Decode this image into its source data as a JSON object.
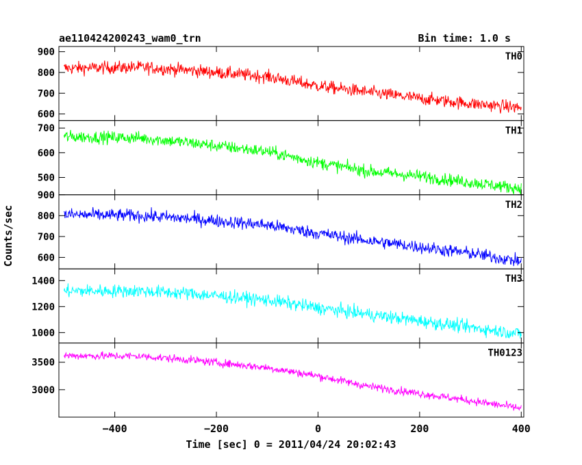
{
  "header": {
    "left": "ae110424200243_wam0_trn",
    "right": "Bin time: 1.0 s"
  },
  "chart_data": {
    "type": "line",
    "xlabel": "Time [sec] 0 = 2011/04/24 20:02:43",
    "ylabel": "Counts/sec",
    "xlim": [
      -510,
      405
    ],
    "x_ticks": [
      -400,
      -200,
      0,
      200,
      400
    ],
    "x_tick_labels": [
      "−400",
      "−200",
      "0",
      "200",
      "400"
    ],
    "x_range": [
      -500,
      400
    ],
    "grid": false,
    "panels": [
      {
        "name": "TH0",
        "color": "#ff0000",
        "ylim": [
          568,
          925
        ],
        "yticks": [
          600,
          700,
          800,
          900
        ],
        "trend": [
          [
            -500,
            820
          ],
          [
            -350,
            825
          ],
          [
            -250,
            810
          ],
          [
            -100,
            780
          ],
          [
            0,
            735
          ],
          [
            100,
            705
          ],
          [
            200,
            675
          ],
          [
            300,
            650
          ],
          [
            400,
            630
          ]
        ],
        "noise": 55
      },
      {
        "name": "TH1",
        "color": "#00ff00",
        "ylim": [
          430,
          730
        ],
        "yticks": [
          500,
          600,
          700
        ],
        "trend": [
          [
            -500,
            665
          ],
          [
            -350,
            660
          ],
          [
            -250,
            640
          ],
          [
            -100,
            605
          ],
          [
            0,
            560
          ],
          [
            100,
            525
          ],
          [
            200,
            505
          ],
          [
            300,
            480
          ],
          [
            400,
            455
          ]
        ],
        "noise": 45
      },
      {
        "name": "TH2",
        "color": "#0000ff",
        "ylim": [
          545,
          900
        ],
        "yticks": [
          600,
          700,
          800,
          900
        ],
        "trend": [
          [
            -500,
            805
          ],
          [
            -350,
            800
          ],
          [
            -250,
            785
          ],
          [
            -100,
            755
          ],
          [
            0,
            715
          ],
          [
            100,
            680
          ],
          [
            200,
            650
          ],
          [
            300,
            620
          ],
          [
            400,
            580
          ]
        ],
        "noise": 55
      },
      {
        "name": "TH3",
        "color": "#00ffff",
        "ylim": [
          920,
          1490
        ],
        "yticks": [
          1000,
          1200,
          1400
        ],
        "trend": [
          [
            -500,
            1320
          ],
          [
            -350,
            1320
          ],
          [
            -250,
            1300
          ],
          [
            -100,
            1250
          ],
          [
            0,
            1190
          ],
          [
            100,
            1140
          ],
          [
            200,
            1090
          ],
          [
            300,
            1040
          ],
          [
            400,
            990
          ]
        ],
        "noise": 90
      },
      {
        "name": "TH0123",
        "color": "#ff00ff",
        "ylim": [
          2500,
          3850
        ],
        "yticks": [
          3000,
          3500
        ],
        "trend": [
          [
            -500,
            3620
          ],
          [
            -350,
            3610
          ],
          [
            -250,
            3540
          ],
          [
            -100,
            3400
          ],
          [
            0,
            3250
          ],
          [
            100,
            3060
          ],
          [
            200,
            2930
          ],
          [
            300,
            2800
          ],
          [
            400,
            2660
          ]
        ],
        "noise": 130
      }
    ]
  }
}
